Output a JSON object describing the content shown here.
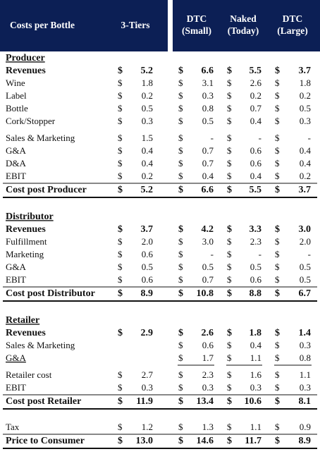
{
  "header": {
    "columns": [
      [
        "Costs per Bottle"
      ],
      [
        "3-Tiers"
      ],
      [
        "DTC",
        "(Small)"
      ],
      [
        "Naked",
        "(Today)"
      ],
      [
        "DTC",
        "(Large)"
      ]
    ]
  },
  "currency": "$",
  "sections": [
    {
      "title": "Producer",
      "groups": [
        [
          {
            "label": "Revenues",
            "cells": [
              "5.2",
              "6.6",
              "5.5",
              "3.7"
            ]
          },
          {
            "label": "Wine",
            "cells": [
              "1.8",
              "3.1",
              "2.6",
              "1.8"
            ]
          },
          {
            "label": "Label",
            "cells": [
              "0.2",
              "0.3",
              "0.2",
              "0.2"
            ]
          },
          {
            "label": "Bottle",
            "cells": [
              "0.5",
              "0.8",
              "0.7",
              "0.5"
            ]
          },
          {
            "label": "Cork/Stopper",
            "cells": [
              "0.3",
              "0.5",
              "0.4",
              "0.3"
            ]
          }
        ],
        [
          {
            "label": "Sales & Marketing",
            "cells": [
              "1.5",
              "-",
              "-",
              "-"
            ]
          },
          {
            "label": "G&A",
            "cells": [
              "0.4",
              "0.7",
              "0.6",
              "0.4"
            ]
          },
          {
            "label": "D&A",
            "cells": [
              "0.4",
              "0.7",
              "0.6",
              "0.4"
            ]
          },
          {
            "label": "EBIT",
            "cells": [
              "0.2",
              "0.4",
              "0.4",
              "0.2"
            ]
          }
        ]
      ],
      "total": {
        "label": "Cost post Producer",
        "cells": [
          "5.2",
          "6.6",
          "5.5",
          "3.7"
        ]
      }
    },
    {
      "title": "Distributor",
      "groups": [
        [
          {
            "label": "Revenues",
            "cells": [
              "3.7",
              "4.2",
              "3.3",
              "3.0"
            ]
          },
          {
            "label": "Fulfillment",
            "cells": [
              "2.0",
              "3.0",
              "2.3",
              "2.0"
            ]
          },
          {
            "label": "Marketing",
            "cells": [
              "0.6",
              "-",
              "-",
              "-"
            ]
          },
          {
            "label": "G&A",
            "cells": [
              "0.5",
              "0.5",
              "0.5",
              "0.5"
            ]
          },
          {
            "label": "EBIT",
            "cells": [
              "0.6",
              "0.7",
              "0.6",
              "0.5"
            ]
          }
        ]
      ],
      "total": {
        "label": "Cost post Distributor",
        "cells": [
          "8.9",
          "10.8",
          "8.8",
          "6.7"
        ]
      }
    },
    {
      "title": "Retailer",
      "groups": [
        [
          {
            "label": "Revenues",
            "cells": [
              "2.9",
              "2.6",
              "1.8",
              "1.4"
            ]
          },
          {
            "label": "Sales & Marketing",
            "cells": [
              null,
              "0.6",
              "0.4",
              "0.3"
            ]
          },
          {
            "label": "G&A",
            "cells": [
              null,
              "1.7",
              "1.1",
              "0.8"
            ]
          }
        ],
        [
          {
            "label": "Retailer cost",
            "cells": [
              "2.7",
              "2.3",
              "1.6",
              "1.1"
            ]
          },
          {
            "label": "EBIT",
            "cells": [
              "0.3",
              "0.3",
              "0.3",
              "0.3"
            ]
          }
        ]
      ],
      "total": {
        "label": "Cost post Retailer",
        "cells": [
          "11.9",
          "13.4",
          "10.6",
          "8.1"
        ]
      }
    },
    {
      "groups": [
        [
          {
            "label": "Tax",
            "cells": [
              "1.2",
              "1.3",
              "1.1",
              "0.9"
            ]
          }
        ]
      ],
      "total": {
        "label": "Price to Consumer",
        "cells": [
          "13.0",
          "14.6",
          "11.7",
          "8.9"
        ]
      }
    }
  ]
}
